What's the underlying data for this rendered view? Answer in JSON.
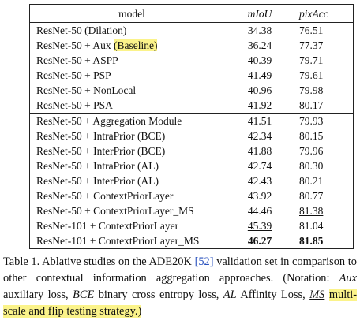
{
  "table": {
    "header": [
      "model",
      "mIoU",
      "pixAcc"
    ],
    "rows": [
      [
        "ResNet-50 (Dilation)",
        "34.38",
        "76.51"
      ],
      [
        [
          "ResNet-50 + Aux",
          "(Baseline)"
        ],
        "36.24",
        "77.37"
      ],
      [
        "ResNet-50 + ASPP",
        "40.39",
        "79.71"
      ],
      [
        "ResNet-50 + PSP",
        "41.49",
        "79.61"
      ],
      [
        "ResNet-50 + NonLocal",
        "40.96",
        "79.98"
      ],
      [
        "ResNet-50 + PSA",
        "41.92",
        "80.17"
      ],
      [
        "ResNet-50 + Aggregation Module",
        "41.51",
        "79.93"
      ],
      [
        "ResNet-50 + IntraPrior (BCE)",
        "42.34",
        "80.15"
      ],
      [
        "ResNet-50 + InterPrior (BCE)",
        "41.88",
        "79.96"
      ],
      [
        "ResNet-50 + IntraPrior (AL)",
        "42.74",
        "80.30"
      ],
      [
        "ResNet-50 + InterPrior (AL)",
        "42.43",
        "80.21"
      ],
      [
        "ResNet-50 + ContextPriorLayer",
        "43.92",
        "80.77"
      ],
      [
        "ResNet-50 + ContextPriorLayer_MS",
        "44.46",
        "81.38"
      ],
      [
        "ResNet-101 + ContextPriorLayer",
        "45.39",
        "81.04"
      ],
      [
        "ResNet-101 + ContextPriorLayer_MS",
        "46.27",
        "81.85"
      ]
    ]
  },
  "caption": {
    "parts": [
      "Table 1. Ablative studies on the ADE20K ",
      "[52]",
      " validation set in comparison to other contextual information aggregation approaches. (Notation: ",
      "Aux",
      " auxiliary loss, ",
      "BCE",
      " binary cross entropy loss, ",
      "AL",
      " Affinity Loss, ",
      "MS",
      " ",
      "multi-scale and flip testing strategy.)"
    ]
  }
}
